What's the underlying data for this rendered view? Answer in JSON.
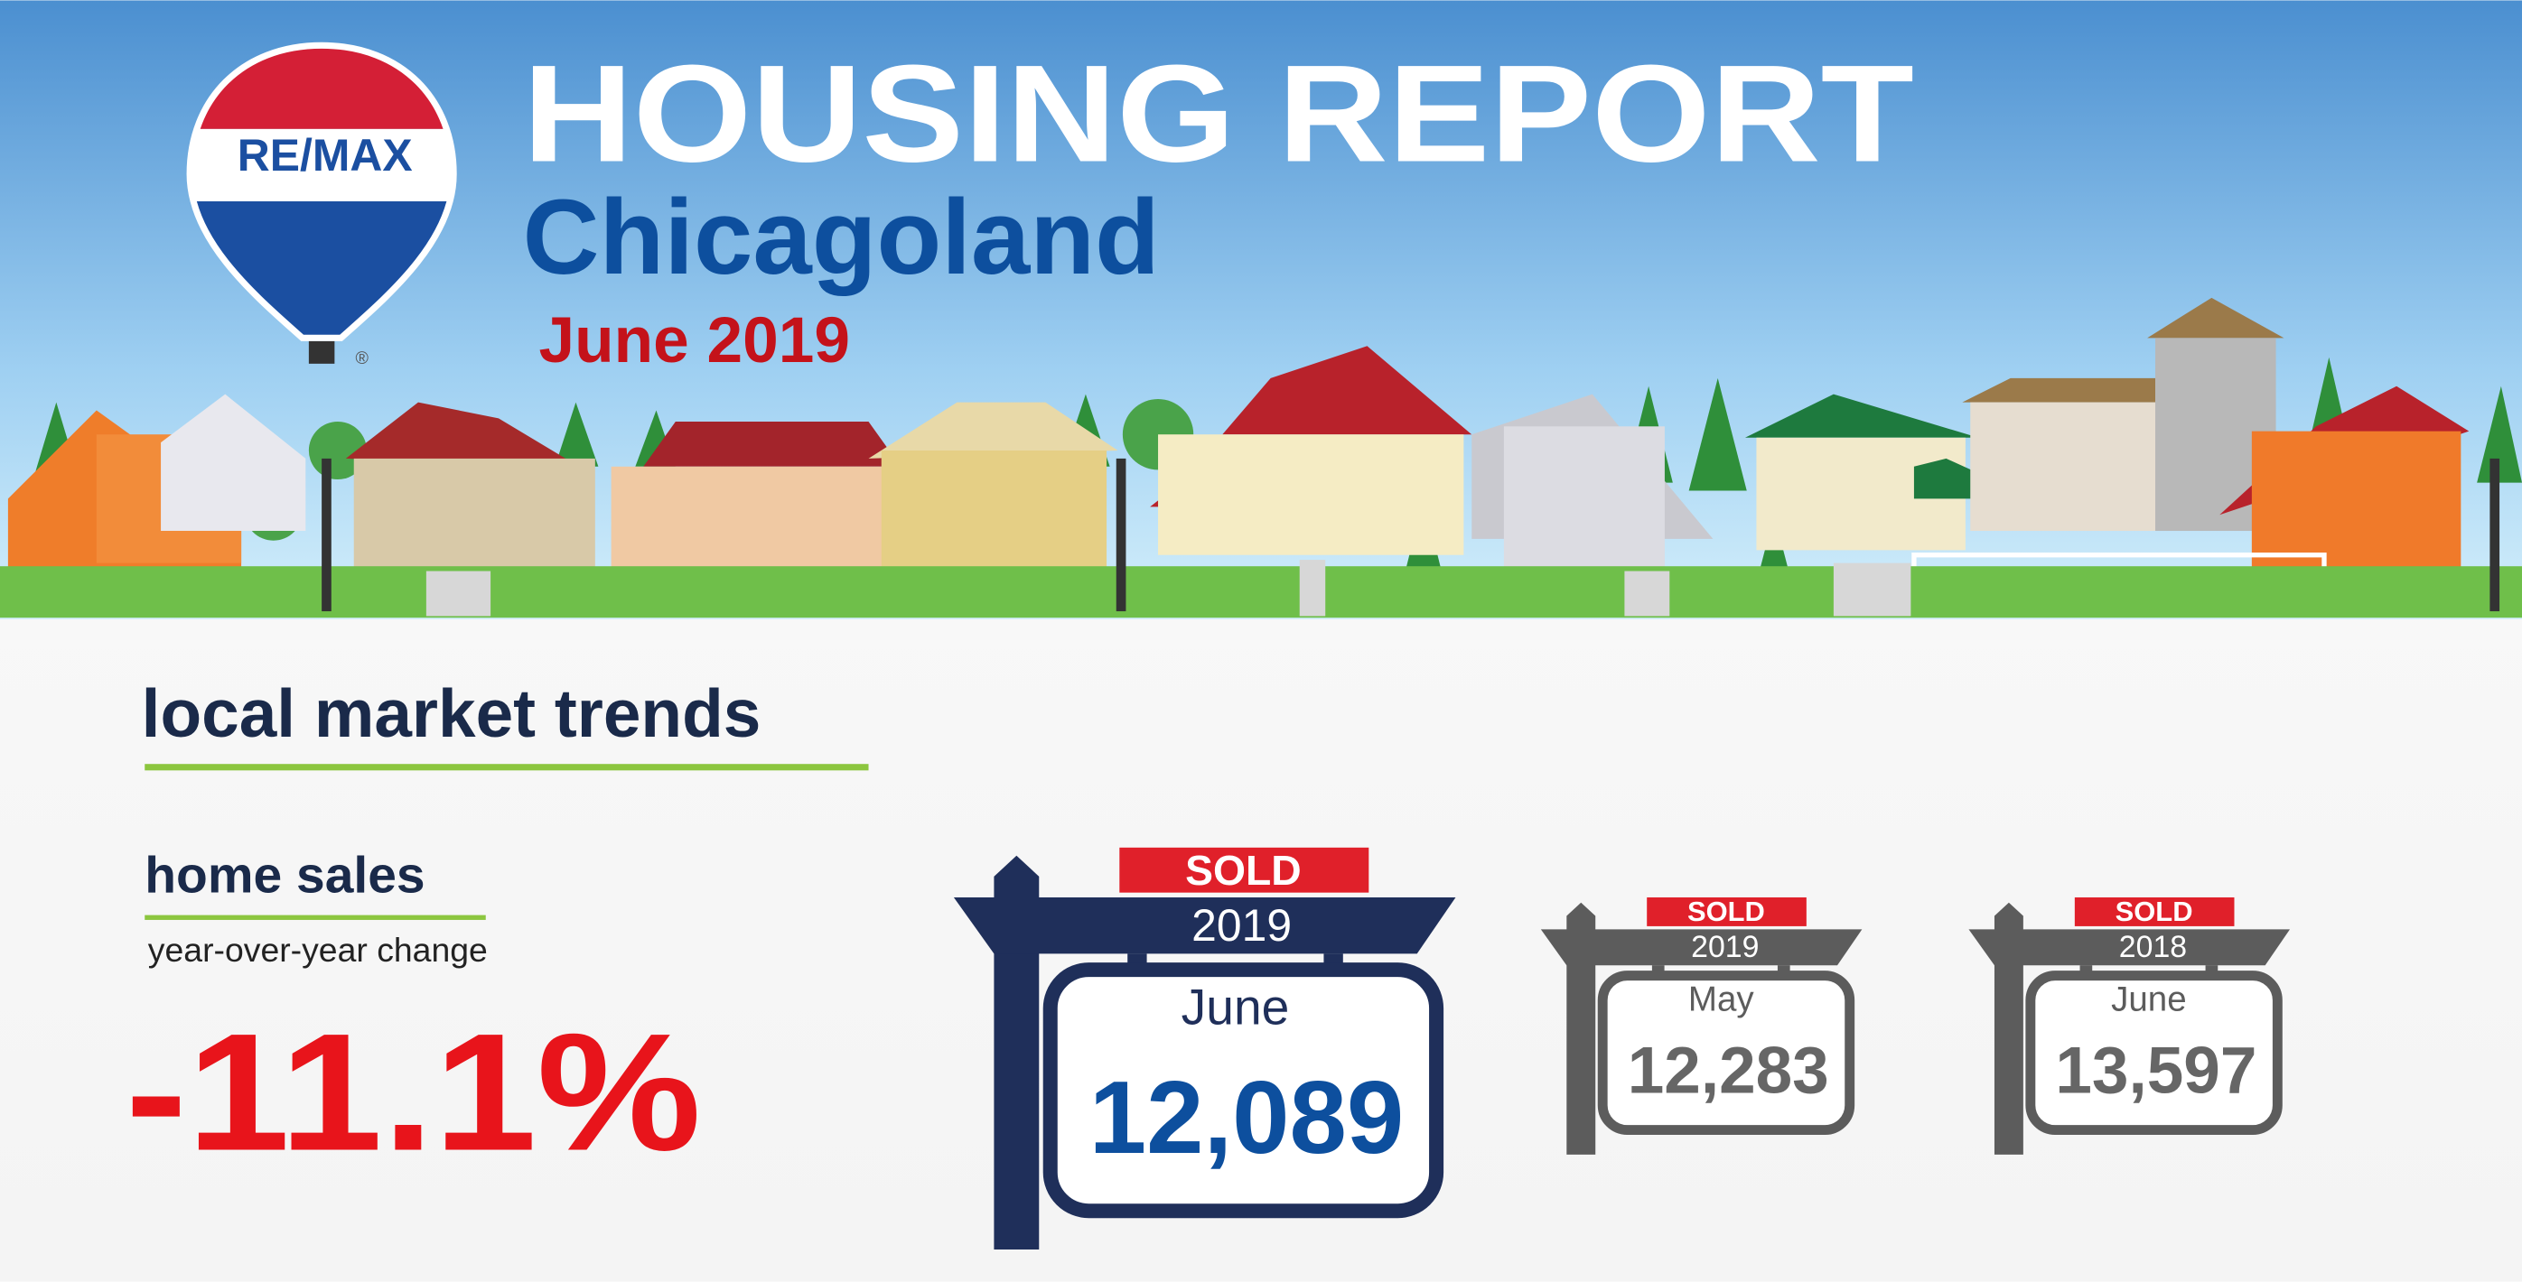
{
  "logo": {
    "text": "RE/MAX",
    "mark": "®"
  },
  "header": {
    "title": "HOUSING REPORT",
    "region": "Chicagoland",
    "period": "June 2019"
  },
  "section": {
    "title": "local market trends"
  },
  "metric": {
    "title": "home sales",
    "subtitle": "year-over-year change",
    "change": "-11.1%"
  },
  "signs": [
    {
      "badge": "SOLD",
      "year": "2019",
      "month": "June",
      "value": "12,089"
    },
    {
      "badge": "SOLD",
      "year": "2019",
      "month": "May",
      "value": "12,283"
    },
    {
      "badge": "SOLD",
      "year": "2018",
      "month": "June",
      "value": "13,597"
    }
  ]
}
